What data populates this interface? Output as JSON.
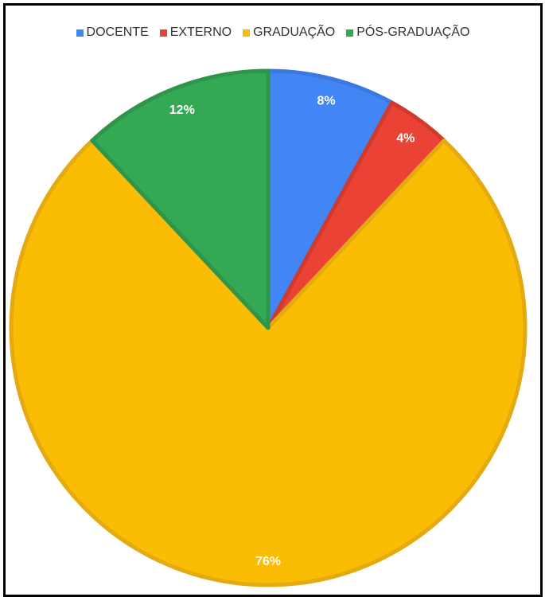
{
  "chart_data": {
    "type": "pie",
    "title": "",
    "legend_position": "top",
    "slices": [
      {
        "label": "DOCENTE",
        "value": 8,
        "display": "8%",
        "color": "#4285F4",
        "edge": "#3B78E0"
      },
      {
        "label": "EXTERNO",
        "value": 4,
        "display": "4%",
        "color": "#EA4335",
        "edge": "#D03A2E"
      },
      {
        "label": "GRADUAÇÃO",
        "value": 76,
        "display": "76%",
        "color": "#FBBC04",
        "edge": "#E3AA12"
      },
      {
        "label": "PÓS-GRADUAÇÃO",
        "value": 12,
        "display": "12%",
        "color": "#34A853",
        "edge": "#2E954A"
      }
    ]
  }
}
